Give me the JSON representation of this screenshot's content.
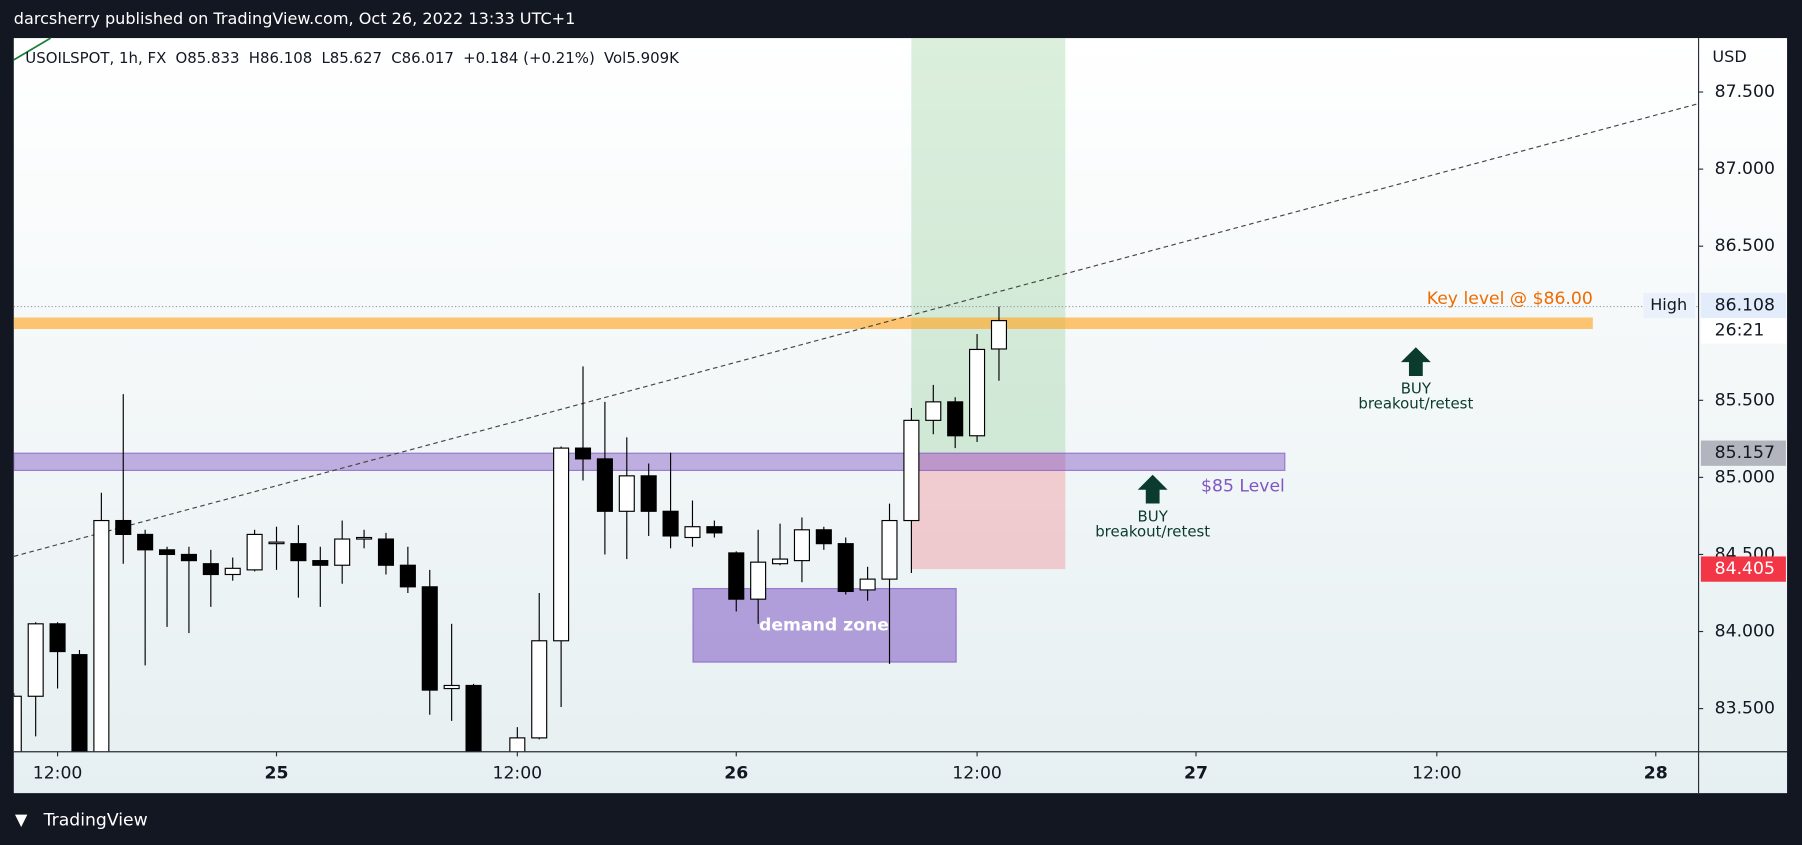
{
  "header": "darcsherry published on TradingView.com, Oct 26, 2022 13:33 UTC+1",
  "footer": "TradingView",
  "chart_data": {
    "type": "candlestick",
    "legend": [
      "USOILSPOT, 1h, FX",
      "O85.833",
      "H86.108",
      "L85.627",
      "C86.017",
      "+0.184 (+0.21%)",
      "Vol5.909K"
    ],
    "axis_unit": "USD",
    "categories": [
      null,
      null,
      null,
      null,
      null,
      null,
      null,
      null,
      null,
      null,
      null,
      null,
      null,
      null,
      null,
      null,
      null,
      null,
      null,
      null,
      null,
      null,
      null,
      null,
      null,
      null,
      null,
      null,
      null,
      null,
      null,
      null,
      null,
      null,
      null,
      null,
      null,
      null,
      null,
      null,
      null,
      null,
      null,
      null,
      null,
      null
    ],
    "open": [
      83.1,
      83.58,
      84.05,
      83.85,
      83.1,
      84.72,
      84.63,
      84.53,
      84.5,
      84.44,
      84.37,
      84.4,
      84.57,
      84.57,
      84.46,
      84.43,
      84.6,
      84.6,
      84.43,
      84.29,
      83.63,
      83.65,
      null,
      83.15,
      83.31,
      83.94,
      85.19,
      85.12,
      84.78,
      85.01,
      84.78,
      84.61,
      84.68,
      84.51,
      84.21,
      84.44,
      84.46,
      84.66,
      84.57,
      84.27,
      84.34,
      84.72,
      85.37,
      85.49,
      85.27,
      85.833
    ],
    "high": [
      83.6,
      84.06,
      84.06,
      83.88,
      84.9,
      85.54,
      84.66,
      84.55,
      84.55,
      84.53,
      84.48,
      84.66,
      84.68,
      84.69,
      84.55,
      84.72,
      84.66,
      84.64,
      84.55,
      84.4,
      84.05,
      83.66,
      null,
      83.38,
      84.25,
      85.2,
      85.72,
      85.49,
      85.26,
      85.09,
      85.16,
      84.85,
      84.72,
      84.52,
      84.66,
      84.7,
      84.74,
      84.68,
      84.61,
      84.42,
      84.83,
      85.45,
      85.6,
      85.52,
      85.93,
      86.108
    ],
    "low": [
      83.0,
      83.32,
      83.63,
      83.0,
      83.0,
      84.44,
      83.78,
      84.03,
      83.99,
      84.16,
      84.33,
      84.39,
      84.4,
      84.22,
      84.16,
      84.31,
      84.54,
      84.37,
      84.25,
      83.46,
      83.42,
      83.0,
      null,
      83.1,
      83.3,
      83.51,
      84.98,
      84.5,
      84.47,
      84.62,
      84.54,
      84.55,
      84.61,
      84.13,
      84.05,
      84.43,
      84.32,
      84.53,
      84.24,
      84.2,
      83.79,
      84.38,
      85.28,
      85.19,
      85.23,
      85.627
    ],
    "close": [
      83.58,
      84.05,
      83.87,
      83.1,
      84.72,
      84.63,
      84.53,
      84.5,
      84.46,
      84.37,
      84.41,
      84.63,
      84.58,
      84.46,
      84.43,
      84.6,
      84.61,
      84.43,
      84.29,
      83.62,
      83.65,
      83.1,
      null,
      83.31,
      83.94,
      85.19,
      85.12,
      84.78,
      85.01,
      84.78,
      84.62,
      84.68,
      84.64,
      84.21,
      84.45,
      84.47,
      84.66,
      84.57,
      84.26,
      84.34,
      84.72,
      85.37,
      85.49,
      85.27,
      85.83,
      86.017
    ],
    "up_color": "#ffffff",
    "down_color": "#000000",
    "ylim": [
      83.22,
      87.85
    ],
    "yticks": [
      {
        "value": 83.5,
        "label": "83.500"
      },
      {
        "value": 84,
        "label": "84.000"
      },
      {
        "value": 84.5,
        "label": "84.500"
      },
      {
        "value": 85,
        "label": "85.000"
      },
      {
        "value": 85.5,
        "label": "85.500"
      },
      {
        "value": 86.5,
        "label": "86.500"
      },
      {
        "value": 87,
        "label": "87.000"
      },
      {
        "value": 87.5,
        "label": "87.500"
      }
    ],
    "xticks": [
      {
        "value": 2,
        "label": "12:00"
      },
      {
        "value": 12,
        "label": "25"
      },
      {
        "value": 23,
        "label": "12:00"
      },
      {
        "value": 33,
        "label": "26"
      },
      {
        "value": 44,
        "label": "12:00"
      },
      {
        "value": 54,
        "label": "27"
      },
      {
        "value": 65,
        "label": "12:00"
      },
      {
        "value": 75,
        "label": "28"
      }
    ],
    "session_high": {
      "name": "High",
      "value": 86.108
    },
    "countdown": "26:21",
    "entry": 85.157,
    "stop": 84.405,
    "key_level": {
      "label": "Key level @ $86.00",
      "value": 86
    },
    "support_label": "$85 Level",
    "demand_zone": "demand zone",
    "annotations": [
      [
        "BUY",
        "breakout/retest"
      ],
      [
        "BUY",
        "breakout/retest"
      ]
    ]
  }
}
